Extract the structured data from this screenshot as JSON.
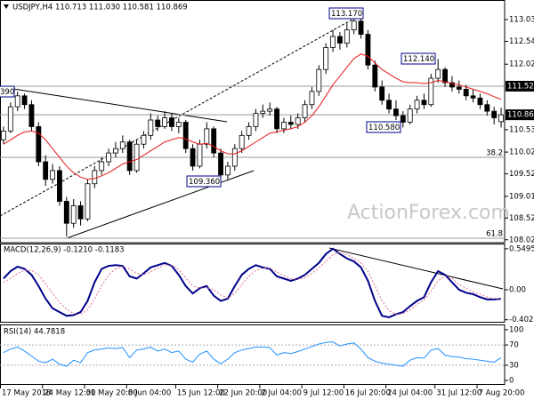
{
  "chart_data": [
    {
      "type": "candlestick",
      "title": "USDJPY,H4  110.713 111.030 110.581 110.869",
      "colors": {
        "up": "#ffffff",
        "down": "#000000",
        "outline": "#000000"
      },
      "ohlc": [
        [
          110.3,
          110.6,
          110.2,
          110.5
        ],
        [
          110.5,
          111.15,
          110.45,
          111.05
        ],
        [
          111.05,
          111.39,
          110.95,
          111.3
        ],
        [
          111.3,
          111.35,
          111.0,
          111.1
        ],
        [
          111.1,
          111.2,
          110.5,
          110.6
        ],
        [
          110.6,
          110.7,
          109.7,
          109.8
        ],
        [
          109.8,
          109.95,
          109.25,
          109.4
        ],
        [
          109.4,
          109.75,
          109.3,
          109.6
        ],
        [
          109.6,
          109.7,
          108.8,
          108.9
        ],
        [
          108.9,
          109.0,
          108.1,
          108.4
        ],
        [
          108.4,
          108.95,
          108.3,
          108.8
        ],
        [
          108.8,
          108.9,
          108.35,
          108.5
        ],
        [
          108.5,
          109.4,
          108.45,
          109.3
        ],
        [
          109.3,
          109.7,
          109.2,
          109.6
        ],
        [
          109.6,
          109.9,
          109.5,
          109.8
        ],
        [
          109.8,
          110.1,
          109.7,
          110.0
        ],
        [
          110.0,
          110.25,
          109.9,
          110.1
        ],
        [
          110.1,
          110.4,
          110.0,
          110.25
        ],
        [
          110.25,
          110.3,
          109.5,
          109.6
        ],
        [
          109.6,
          110.3,
          109.55,
          110.2
        ],
        [
          110.2,
          110.5,
          110.1,
          110.4
        ],
        [
          110.4,
          110.9,
          110.3,
          110.75
        ],
        [
          110.75,
          110.85,
          110.5,
          110.6
        ],
        [
          110.6,
          110.95,
          110.55,
          110.8
        ],
        [
          110.8,
          110.9,
          110.5,
          110.6
        ],
        [
          110.6,
          110.8,
          110.45,
          110.7
        ],
        [
          110.7,
          110.75,
          110.0,
          110.1
        ],
        [
          110.1,
          110.2,
          109.6,
          109.7
        ],
        [
          109.7,
          110.3,
          109.65,
          110.2
        ],
        [
          110.2,
          110.7,
          110.1,
          110.55
        ],
        [
          110.55,
          110.6,
          109.9,
          110.0
        ],
        [
          110.0,
          110.1,
          109.36,
          109.5
        ],
        [
          109.5,
          109.8,
          109.4,
          109.7
        ],
        [
          109.7,
          110.2,
          109.6,
          110.1
        ],
        [
          110.1,
          110.5,
          110.0,
          110.4
        ],
        [
          110.4,
          110.7,
          110.3,
          110.6
        ],
        [
          110.6,
          111.0,
          110.5,
          110.9
        ],
        [
          110.9,
          111.1,
          110.8,
          110.95
        ],
        [
          110.95,
          111.15,
          110.85,
          111.0
        ],
        [
          111.0,
          111.05,
          110.45,
          110.55
        ],
        [
          110.55,
          110.8,
          110.45,
          110.7
        ],
        [
          110.7,
          110.85,
          110.55,
          110.65
        ],
        [
          110.65,
          110.9,
          110.55,
          110.8
        ],
        [
          110.8,
          111.2,
          110.7,
          111.1
        ],
        [
          111.1,
          111.5,
          111.0,
          111.4
        ],
        [
          111.4,
          112.0,
          111.3,
          111.9
        ],
        [
          111.9,
          112.5,
          111.8,
          112.4
        ],
        [
          112.4,
          112.8,
          112.3,
          112.65
        ],
        [
          112.65,
          112.75,
          112.35,
          112.5
        ],
        [
          112.5,
          112.95,
          112.4,
          112.8
        ],
        [
          112.8,
          113.17,
          112.7,
          113.0
        ],
        [
          113.0,
          113.1,
          112.6,
          112.7
        ],
        [
          112.7,
          112.8,
          111.9,
          112.0
        ],
        [
          112.0,
          112.1,
          111.4,
          111.5
        ],
        [
          111.5,
          111.65,
          111.1,
          111.2
        ],
        [
          111.2,
          111.35,
          110.9,
          111.0
        ],
        [
          111.0,
          111.2,
          110.75,
          110.85
        ],
        [
          110.85,
          110.95,
          110.58,
          110.7
        ],
        [
          110.7,
          111.1,
          110.65,
          111.0
        ],
        [
          111.0,
          111.3,
          110.9,
          111.2
        ],
        [
          111.2,
          111.35,
          111.0,
          111.1
        ],
        [
          111.1,
          111.8,
          111.05,
          111.7
        ],
        [
          111.7,
          112.14,
          111.6,
          111.9
        ],
        [
          111.9,
          111.95,
          111.5,
          111.6
        ],
        [
          111.6,
          111.75,
          111.4,
          111.5
        ],
        [
          111.5,
          111.65,
          111.35,
          111.45
        ],
        [
          111.45,
          111.55,
          111.2,
          111.3
        ],
        [
          111.3,
          111.45,
          111.15,
          111.25
        ],
        [
          111.25,
          111.35,
          111.0,
          111.1
        ],
        [
          111.1,
          111.2,
          110.85,
          110.95
        ],
        [
          110.95,
          111.05,
          110.65,
          110.8
        ],
        [
          110.713,
          111.03,
          110.581,
          110.869
        ]
      ],
      "overlay_color": "#e8191c",
      "overlay": [
        110.2,
        110.3,
        110.4,
        110.48,
        110.5,
        110.45,
        110.3,
        110.1,
        109.9,
        109.7,
        109.55,
        109.45,
        109.4,
        109.42,
        109.48,
        109.55,
        109.65,
        109.75,
        109.8,
        109.85,
        109.95,
        110.05,
        110.15,
        110.25,
        110.3,
        110.35,
        110.32,
        110.25,
        110.2,
        110.22,
        110.15,
        110.05,
        109.98,
        109.98,
        110.05,
        110.15,
        110.25,
        110.35,
        110.45,
        110.48,
        110.52,
        110.55,
        110.6,
        110.7,
        110.85,
        111.05,
        111.3,
        111.55,
        111.75,
        111.95,
        112.15,
        112.25,
        112.2,
        112.05,
        111.9,
        111.8,
        111.7,
        111.62,
        111.6,
        111.6,
        111.58,
        111.6,
        111.65,
        111.62,
        111.58,
        111.55,
        111.5,
        111.45,
        111.4,
        111.35,
        111.28,
        111.22
      ],
      "xlim": [
        0,
        72
      ],
      "xticks": [
        {
          "value": 0,
          "label": "17 May 2018"
        },
        {
          "value": 6,
          "label": "24 May 12:00"
        },
        {
          "value": 12,
          "label": "31 May 20:00"
        },
        {
          "value": 18,
          "label": "8 Jun 04:00"
        },
        {
          "value": 25,
          "label": "15 Jun 12:00"
        },
        {
          "value": 31,
          "label": "22 Jun 20:00"
        },
        {
          "value": 37,
          "label": "2 Jul 04:00"
        },
        {
          "value": 43,
          "label": "9 Jul 12:00"
        },
        {
          "value": 49,
          "label": "16 Jul 20:00"
        },
        {
          "value": 55,
          "label": "24 Jul 04:00"
        },
        {
          "value": 62,
          "label": "31 Jul 12:00"
        },
        {
          "value": 68,
          "label": "7 Aug 20:00"
        }
      ],
      "ylim": [
        107.98,
        113.44
      ],
      "yticks": [
        113.035,
        112.54,
        {
          "value": 112.02,
          "label": "112.020"
        },
        {
          "value": 110.53,
          "label": "110.530"
        },
        {
          "value": 110.02,
          "label": "110.020"
        },
        109.525,
        109.015,
        108.52,
        108.025
      ],
      "marked_levels": [
        {
          "value": 111.52,
          "label": "111.520"
        },
        {
          "value": 110.869,
          "label": "110.869"
        }
      ],
      "fib_levels": [
        {
          "value": 109.9,
          "label": "38.2"
        },
        {
          "value": 108.06,
          "label": "61.8"
        }
      ],
      "annotations": [
        "113.170",
        "112.140",
        "110.580",
        "109.360",
        "390"
      ],
      "watermark": "ActionForex.com"
    },
    {
      "type": "line",
      "title": "MACD(12,26,9) -0.1210 -0.1183",
      "ylim": [
        -0.43,
        0.62
      ],
      "yticks": [
        0.5495,
        {
          "value": 0,
          "label": "0.00"
        },
        -0.4029
      ],
      "series": [
        {
          "color": "#00008b",
          "width": 2,
          "dashed": false,
          "values": [
            0.15,
            0.25,
            0.31,
            0.28,
            0.2,
            0.05,
            -0.12,
            -0.25,
            -0.3,
            -0.35,
            -0.34,
            -0.3,
            -0.15,
            0.1,
            0.28,
            0.32,
            0.33,
            0.32,
            0.18,
            0.15,
            0.22,
            0.3,
            0.33,
            0.36,
            0.32,
            0.2,
            0.05,
            -0.05,
            0.02,
            0.05,
            -0.08,
            -0.15,
            -0.12,
            0.05,
            0.2,
            0.28,
            0.33,
            0.3,
            0.28,
            0.18,
            0.15,
            0.12,
            0.15,
            0.2,
            0.28,
            0.36,
            0.48,
            0.55,
            0.48,
            0.42,
            0.38,
            0.3,
            0.12,
            -0.15,
            -0.35,
            -0.37,
            -0.33,
            -0.3,
            -0.22,
            -0.15,
            -0.1,
            0.1,
            0.25,
            0.2,
            0.1,
            0.0,
            -0.04,
            -0.06,
            -0.1,
            -0.13,
            -0.13,
            -0.121
          ]
        },
        {
          "color": "#e0708f",
          "width": 1,
          "dashed": true,
          "values": [
            0.1,
            0.15,
            0.22,
            0.26,
            0.26,
            0.2,
            0.08,
            -0.05,
            -0.17,
            -0.26,
            -0.32,
            -0.33,
            -0.27,
            -0.12,
            0.05,
            0.2,
            0.28,
            0.31,
            0.28,
            0.22,
            0.2,
            0.24,
            0.29,
            0.33,
            0.33,
            0.27,
            0.16,
            0.05,
            0.02,
            0.03,
            0.0,
            -0.07,
            -0.11,
            -0.05,
            0.07,
            0.18,
            0.26,
            0.29,
            0.29,
            0.24,
            0.19,
            0.15,
            0.14,
            0.16,
            0.22,
            0.29,
            0.38,
            0.47,
            0.5,
            0.47,
            0.42,
            0.36,
            0.25,
            0.05,
            -0.15,
            -0.28,
            -0.33,
            -0.32,
            -0.27,
            -0.2,
            -0.14,
            -0.02,
            0.12,
            0.18,
            0.15,
            0.07,
            0.02,
            -0.03,
            -0.06,
            -0.1,
            -0.12,
            -0.1183
          ]
        }
      ]
    },
    {
      "type": "line",
      "title": "RSI(14) 44.7818",
      "ylim": [
        0,
        100
      ],
      "yticks": [
        100,
        70,
        30,
        0
      ],
      "levels": [
        70,
        30
      ],
      "series": [
        {
          "color": "#1e90ff",
          "width": 1,
          "dashed": false,
          "values": [
            55,
            62,
            66,
            58,
            48,
            38,
            35,
            42,
            32,
            28,
            40,
            35,
            55,
            60,
            62,
            64,
            63,
            65,
            45,
            60,
            62,
            66,
            58,
            62,
            55,
            58,
            42,
            36,
            52,
            58,
            42,
            33,
            42,
            55,
            60,
            63,
            66,
            66,
            65,
            50,
            55,
            53,
            57,
            62,
            67,
            72,
            75,
            76,
            68,
            72,
            74,
            62,
            45,
            38,
            34,
            32,
            30,
            28,
            40,
            45,
            44,
            60,
            63,
            50,
            47,
            46,
            43,
            42,
            40,
            38,
            36,
            44.7818
          ]
        }
      ]
    }
  ]
}
